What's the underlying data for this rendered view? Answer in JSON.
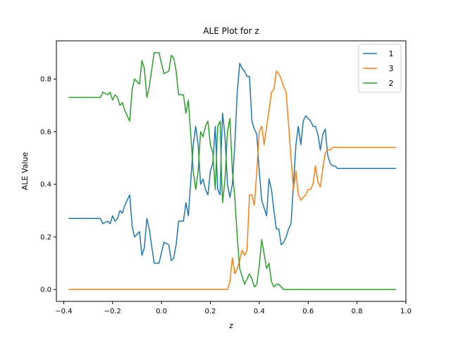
{
  "chart_data": {
    "type": "line",
    "title": "ALE Plot for z",
    "xlabel": "z",
    "ylabel": "ALE Value",
    "xlim": [
      -0.43,
      1.0
    ],
    "ylim": [
      -0.045,
      0.945
    ],
    "xticks": [
      -0.4,
      -0.2,
      0.0,
      0.2,
      0.4,
      0.6,
      0.8,
      1.0
    ],
    "xtick_labels": [
      "−0.4",
      "−0.2",
      "0.0",
      "0.2",
      "0.4",
      "0.6",
      "0.8",
      "1.0"
    ],
    "yticks": [
      0.0,
      0.2,
      0.4,
      0.6,
      0.8
    ],
    "ytick_labels": [
      "0.0",
      "0.2",
      "0.4",
      "0.6",
      "0.8"
    ],
    "grid": false,
    "legend_position": "top-right",
    "series": [
      {
        "name": "1",
        "color": "#1f77b4",
        "points": [
          [
            -0.38,
            0.27
          ],
          [
            -0.25,
            0.27
          ],
          [
            -0.24,
            0.25
          ],
          [
            -0.22,
            0.26
          ],
          [
            -0.21,
            0.25
          ],
          [
            -0.2,
            0.28
          ],
          [
            -0.19,
            0.26
          ],
          [
            -0.18,
            0.27
          ],
          [
            -0.17,
            0.3
          ],
          [
            -0.16,
            0.29
          ],
          [
            -0.15,
            0.32
          ],
          [
            -0.13,
            0.36
          ],
          [
            -0.12,
            0.24
          ],
          [
            -0.11,
            0.2
          ],
          [
            -0.09,
            0.22
          ],
          [
            -0.08,
            0.13
          ],
          [
            -0.07,
            0.16
          ],
          [
            -0.06,
            0.27
          ],
          [
            -0.05,
            0.23
          ],
          [
            -0.03,
            0.1
          ],
          [
            -0.01,
            0.1
          ],
          [
            0.01,
            0.18
          ],
          [
            0.03,
            0.17
          ],
          [
            0.04,
            0.11
          ],
          [
            0.05,
            0.12
          ],
          [
            0.06,
            0.17
          ],
          [
            0.07,
            0.26
          ],
          [
            0.09,
            0.26
          ],
          [
            0.1,
            0.33
          ],
          [
            0.11,
            0.28
          ],
          [
            0.13,
            0.55
          ],
          [
            0.14,
            0.62
          ],
          [
            0.15,
            0.55
          ],
          [
            0.16,
            0.4
          ],
          [
            0.17,
            0.42
          ],
          [
            0.18,
            0.38
          ],
          [
            0.19,
            0.36
          ],
          [
            0.2,
            0.45
          ],
          [
            0.21,
            0.48
          ],
          [
            0.22,
            0.62
          ],
          [
            0.23,
            0.38
          ],
          [
            0.24,
            0.36
          ],
          [
            0.245,
            0.55
          ],
          [
            0.25,
            0.67
          ],
          [
            0.26,
            0.58
          ],
          [
            0.27,
            0.4
          ],
          [
            0.28,
            0.35
          ],
          [
            0.29,
            0.4
          ],
          [
            0.3,
            0.55
          ],
          [
            0.31,
            0.75
          ],
          [
            0.32,
            0.86
          ],
          [
            0.33,
            0.84
          ],
          [
            0.34,
            0.83
          ],
          [
            0.35,
            0.81
          ],
          [
            0.36,
            0.81
          ],
          [
            0.37,
            0.64
          ],
          [
            0.38,
            0.61
          ],
          [
            0.39,
            0.59
          ],
          [
            0.4,
            0.45
          ],
          [
            0.41,
            0.34
          ],
          [
            0.43,
            0.28
          ],
          [
            0.44,
            0.42
          ],
          [
            0.45,
            0.38
          ],
          [
            0.46,
            0.3
          ],
          [
            0.47,
            0.23
          ],
          [
            0.48,
            0.23
          ],
          [
            0.49,
            0.17
          ],
          [
            0.5,
            0.18
          ],
          [
            0.51,
            0.2
          ],
          [
            0.52,
            0.23
          ],
          [
            0.53,
            0.25
          ],
          [
            0.55,
            0.55
          ],
          [
            0.56,
            0.62
          ],
          [
            0.57,
            0.55
          ],
          [
            0.58,
            0.64
          ],
          [
            0.59,
            0.66
          ],
          [
            0.6,
            0.65
          ],
          [
            0.61,
            0.64
          ],
          [
            0.62,
            0.62
          ],
          [
            0.63,
            0.62
          ],
          [
            0.64,
            0.59
          ],
          [
            0.65,
            0.53
          ],
          [
            0.66,
            0.59
          ],
          [
            0.67,
            0.61
          ],
          [
            0.68,
            0.51
          ],
          [
            0.69,
            0.48
          ],
          [
            0.7,
            0.47
          ],
          [
            0.71,
            0.47
          ],
          [
            0.72,
            0.46
          ],
          [
            0.96,
            0.46
          ]
        ]
      },
      {
        "name": "3",
        "color": "#ff7f0e",
        "points": [
          [
            -0.38,
            0.0
          ],
          [
            0.27,
            0.0
          ],
          [
            0.28,
            0.03
          ],
          [
            0.29,
            0.12
          ],
          [
            0.3,
            0.06
          ],
          [
            0.31,
            0.08
          ],
          [
            0.32,
            0.11
          ],
          [
            0.33,
            0.15
          ],
          [
            0.34,
            0.13
          ],
          [
            0.35,
            0.15
          ],
          [
            0.36,
            0.36
          ],
          [
            0.37,
            0.36
          ],
          [
            0.38,
            0.32
          ],
          [
            0.39,
            0.45
          ],
          [
            0.4,
            0.6
          ],
          [
            0.41,
            0.62
          ],
          [
            0.42,
            0.55
          ],
          [
            0.43,
            0.62
          ],
          [
            0.44,
            0.68
          ],
          [
            0.45,
            0.75
          ],
          [
            0.46,
            0.76
          ],
          [
            0.47,
            0.83
          ],
          [
            0.48,
            0.82
          ],
          [
            0.49,
            0.8
          ],
          [
            0.5,
            0.77
          ],
          [
            0.51,
            0.75
          ],
          [
            0.53,
            0.5
          ],
          [
            0.54,
            0.38
          ],
          [
            0.55,
            0.45
          ],
          [
            0.56,
            0.36
          ],
          [
            0.57,
            0.34
          ],
          [
            0.58,
            0.35
          ],
          [
            0.59,
            0.36
          ],
          [
            0.6,
            0.38
          ],
          [
            0.61,
            0.38
          ],
          [
            0.62,
            0.4
          ],
          [
            0.63,
            0.47
          ],
          [
            0.64,
            0.41
          ],
          [
            0.65,
            0.39
          ],
          [
            0.66,
            0.46
          ],
          [
            0.67,
            0.52
          ],
          [
            0.68,
            0.53
          ],
          [
            0.69,
            0.53
          ],
          [
            0.7,
            0.54
          ],
          [
            0.96,
            0.54
          ]
        ]
      },
      {
        "name": "2",
        "color": "#2ca02c",
        "points": [
          [
            -0.38,
            0.73
          ],
          [
            -0.25,
            0.73
          ],
          [
            -0.24,
            0.75
          ],
          [
            -0.22,
            0.74
          ],
          [
            -0.21,
            0.75
          ],
          [
            -0.2,
            0.72
          ],
          [
            -0.19,
            0.74
          ],
          [
            -0.18,
            0.73
          ],
          [
            -0.17,
            0.7
          ],
          [
            -0.16,
            0.71
          ],
          [
            -0.15,
            0.68
          ],
          [
            -0.13,
            0.64
          ],
          [
            -0.12,
            0.76
          ],
          [
            -0.11,
            0.8
          ],
          [
            -0.09,
            0.78
          ],
          [
            -0.08,
            0.87
          ],
          [
            -0.07,
            0.84
          ],
          [
            -0.06,
            0.73
          ],
          [
            -0.05,
            0.77
          ],
          [
            -0.03,
            0.9
          ],
          [
            -0.01,
            0.9
          ],
          [
            0.01,
            0.82
          ],
          [
            0.03,
            0.83
          ],
          [
            0.04,
            0.89
          ],
          [
            0.05,
            0.88
          ],
          [
            0.06,
            0.83
          ],
          [
            0.07,
            0.74
          ],
          [
            0.09,
            0.74
          ],
          [
            0.1,
            0.67
          ],
          [
            0.11,
            0.72
          ],
          [
            0.13,
            0.45
          ],
          [
            0.14,
            0.38
          ],
          [
            0.15,
            0.45
          ],
          [
            0.16,
            0.6
          ],
          [
            0.17,
            0.58
          ],
          [
            0.18,
            0.62
          ],
          [
            0.19,
            0.64
          ],
          [
            0.2,
            0.55
          ],
          [
            0.21,
            0.52
          ],
          [
            0.22,
            0.38
          ],
          [
            0.23,
            0.62
          ],
          [
            0.24,
            0.64
          ],
          [
            0.245,
            0.45
          ],
          [
            0.25,
            0.33
          ],
          [
            0.26,
            0.42
          ],
          [
            0.27,
            0.6
          ],
          [
            0.28,
            0.65
          ],
          [
            0.29,
            0.45
          ],
          [
            0.3,
            0.35
          ],
          [
            0.31,
            0.2
          ],
          [
            0.32,
            0.08
          ],
          [
            0.33,
            0.05
          ],
          [
            0.34,
            0.02
          ],
          [
            0.35,
            0.04
          ],
          [
            0.36,
            0.06
          ],
          [
            0.37,
            0.04
          ],
          [
            0.38,
            0.01
          ],
          [
            0.39,
            0.02
          ],
          [
            0.4,
            0.09
          ],
          [
            0.41,
            0.19
          ],
          [
            0.43,
            0.08
          ],
          [
            0.44,
            0.1
          ],
          [
            0.45,
            0.03
          ],
          [
            0.46,
            0.01
          ],
          [
            0.47,
            0.02
          ],
          [
            0.48,
            0.02
          ],
          [
            0.49,
            0.01
          ],
          [
            0.5,
            0.0
          ],
          [
            0.96,
            0.0
          ]
        ]
      }
    ],
    "legend_order": [
      "1",
      "3",
      "2"
    ]
  }
}
